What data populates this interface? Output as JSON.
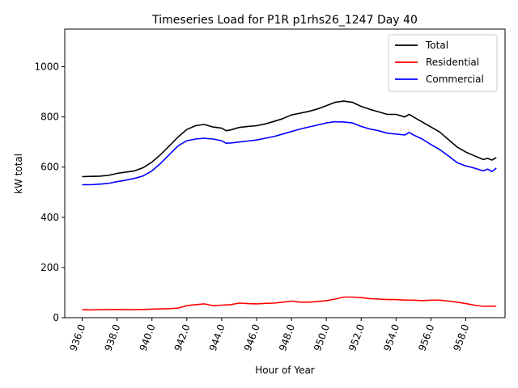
{
  "chart_data": {
    "type": "line",
    "title": "Timeseries Load for P1R p1rhs26_1247  Day 40",
    "xlabel": "Hour of Year",
    "ylabel": "kW total",
    "xlim": [
      935.0,
      960.25
    ],
    "ylim": [
      0,
      1150
    ],
    "x_ticks": [
      936,
      938,
      940,
      942,
      944,
      946,
      948,
      950,
      952,
      954,
      956,
      958
    ],
    "x_tick_labels": [
      "936.0",
      "938.0",
      "940.0",
      "942.0",
      "944.0",
      "946.0",
      "948.0",
      "950.0",
      "952.0",
      "954.0",
      "956.0",
      "958.0"
    ],
    "y_ticks": [
      0,
      200,
      400,
      600,
      800,
      1000
    ],
    "y_tick_labels": [
      "0",
      "200",
      "400",
      "600",
      "800",
      "1000"
    ],
    "legend_position": "top-right",
    "series": [
      {
        "name": "Total",
        "color": "#000000",
        "points": [
          [
            936.0,
            562
          ],
          [
            936.5,
            563
          ],
          [
            937.0,
            564
          ],
          [
            937.5,
            567
          ],
          [
            938.0,
            575
          ],
          [
            938.5,
            580
          ],
          [
            939.0,
            585
          ],
          [
            939.5,
            598
          ],
          [
            940.0,
            620
          ],
          [
            940.5,
            650
          ],
          [
            941.0,
            685
          ],
          [
            941.5,
            720
          ],
          [
            942.0,
            750
          ],
          [
            942.5,
            765
          ],
          [
            943.0,
            770
          ],
          [
            943.5,
            760
          ],
          [
            944.0,
            755
          ],
          [
            944.25,
            745
          ],
          [
            944.5,
            748
          ],
          [
            945.0,
            758
          ],
          [
            945.5,
            762
          ],
          [
            946.0,
            765
          ],
          [
            946.5,
            772
          ],
          [
            947.0,
            782
          ],
          [
            947.5,
            793
          ],
          [
            948.0,
            808
          ],
          [
            948.5,
            815
          ],
          [
            949.0,
            822
          ],
          [
            949.5,
            832
          ],
          [
            950.0,
            845
          ],
          [
            950.5,
            858
          ],
          [
            951.0,
            863
          ],
          [
            951.5,
            858
          ],
          [
            952.0,
            842
          ],
          [
            952.5,
            830
          ],
          [
            953.0,
            820
          ],
          [
            953.5,
            810
          ],
          [
            954.0,
            810
          ],
          [
            954.5,
            800
          ],
          [
            954.75,
            810
          ],
          [
            955.0,
            800
          ],
          [
            955.5,
            780
          ],
          [
            956.0,
            760
          ],
          [
            956.5,
            740
          ],
          [
            957.0,
            710
          ],
          [
            957.5,
            680
          ],
          [
            958.0,
            660
          ],
          [
            958.5,
            645
          ],
          [
            959.0,
            630
          ],
          [
            959.25,
            635
          ],
          [
            959.5,
            628
          ],
          [
            959.75,
            638
          ]
        ]
      },
      {
        "name": "Residential",
        "color": "#ff0000",
        "points": [
          [
            936.0,
            32
          ],
          [
            936.5,
            31
          ],
          [
            937.0,
            32
          ],
          [
            937.5,
            32
          ],
          [
            938.0,
            33
          ],
          [
            938.5,
            32
          ],
          [
            939.0,
            32
          ],
          [
            939.5,
            33
          ],
          [
            940.0,
            34
          ],
          [
            940.5,
            35
          ],
          [
            941.0,
            36
          ],
          [
            941.5,
            38
          ],
          [
            942.0,
            48
          ],
          [
            942.5,
            52
          ],
          [
            943.0,
            55
          ],
          [
            943.5,
            48
          ],
          [
            944.0,
            50
          ],
          [
            944.5,
            52
          ],
          [
            945.0,
            58
          ],
          [
            945.5,
            56
          ],
          [
            946.0,
            55
          ],
          [
            946.5,
            57
          ],
          [
            947.0,
            58
          ],
          [
            947.5,
            62
          ],
          [
            948.0,
            66
          ],
          [
            948.5,
            62
          ],
          [
            949.0,
            62
          ],
          [
            949.5,
            64
          ],
          [
            950.0,
            68
          ],
          [
            950.5,
            74
          ],
          [
            951.0,
            82
          ],
          [
            951.5,
            82
          ],
          [
            952.0,
            80
          ],
          [
            952.5,
            76
          ],
          [
            953.0,
            74
          ],
          [
            953.5,
            72
          ],
          [
            954.0,
            72
          ],
          [
            954.5,
            70
          ],
          [
            955.0,
            70
          ],
          [
            955.5,
            68
          ],
          [
            956.0,
            70
          ],
          [
            956.5,
            70
          ],
          [
            957.0,
            66
          ],
          [
            957.5,
            62
          ],
          [
            958.0,
            56
          ],
          [
            958.5,
            50
          ],
          [
            959.0,
            45
          ],
          [
            959.75,
            46
          ]
        ]
      },
      {
        "name": "Commercial",
        "color": "#0000ff",
        "points": [
          [
            936.0,
            530
          ],
          [
            936.5,
            530
          ],
          [
            937.0,
            532
          ],
          [
            937.5,
            535
          ],
          [
            938.0,
            542
          ],
          [
            938.5,
            548
          ],
          [
            939.0,
            555
          ],
          [
            939.5,
            565
          ],
          [
            940.0,
            585
          ],
          [
            940.5,
            615
          ],
          [
            941.0,
            650
          ],
          [
            941.5,
            685
          ],
          [
            942.0,
            705
          ],
          [
            942.5,
            712
          ],
          [
            943.0,
            715
          ],
          [
            943.5,
            712
          ],
          [
            944.0,
            705
          ],
          [
            944.25,
            695
          ],
          [
            944.5,
            696
          ],
          [
            945.0,
            700
          ],
          [
            945.5,
            704
          ],
          [
            946.0,
            708
          ],
          [
            946.5,
            715
          ],
          [
            947.0,
            722
          ],
          [
            947.5,
            732
          ],
          [
            948.0,
            742
          ],
          [
            948.5,
            752
          ],
          [
            949.0,
            760
          ],
          [
            949.5,
            768
          ],
          [
            950.0,
            776
          ],
          [
            950.5,
            781
          ],
          [
            951.0,
            780
          ],
          [
            951.5,
            776
          ],
          [
            952.0,
            762
          ],
          [
            952.5,
            752
          ],
          [
            953.0,
            745
          ],
          [
            953.5,
            735
          ],
          [
            954.0,
            732
          ],
          [
            954.5,
            728
          ],
          [
            954.75,
            738
          ],
          [
            955.0,
            728
          ],
          [
            955.5,
            712
          ],
          [
            956.0,
            690
          ],
          [
            956.5,
            670
          ],
          [
            957.0,
            645
          ],
          [
            957.5,
            618
          ],
          [
            958.0,
            605
          ],
          [
            958.5,
            596
          ],
          [
            959.0,
            585
          ],
          [
            959.25,
            592
          ],
          [
            959.5,
            582
          ],
          [
            959.75,
            596
          ]
        ]
      }
    ]
  }
}
